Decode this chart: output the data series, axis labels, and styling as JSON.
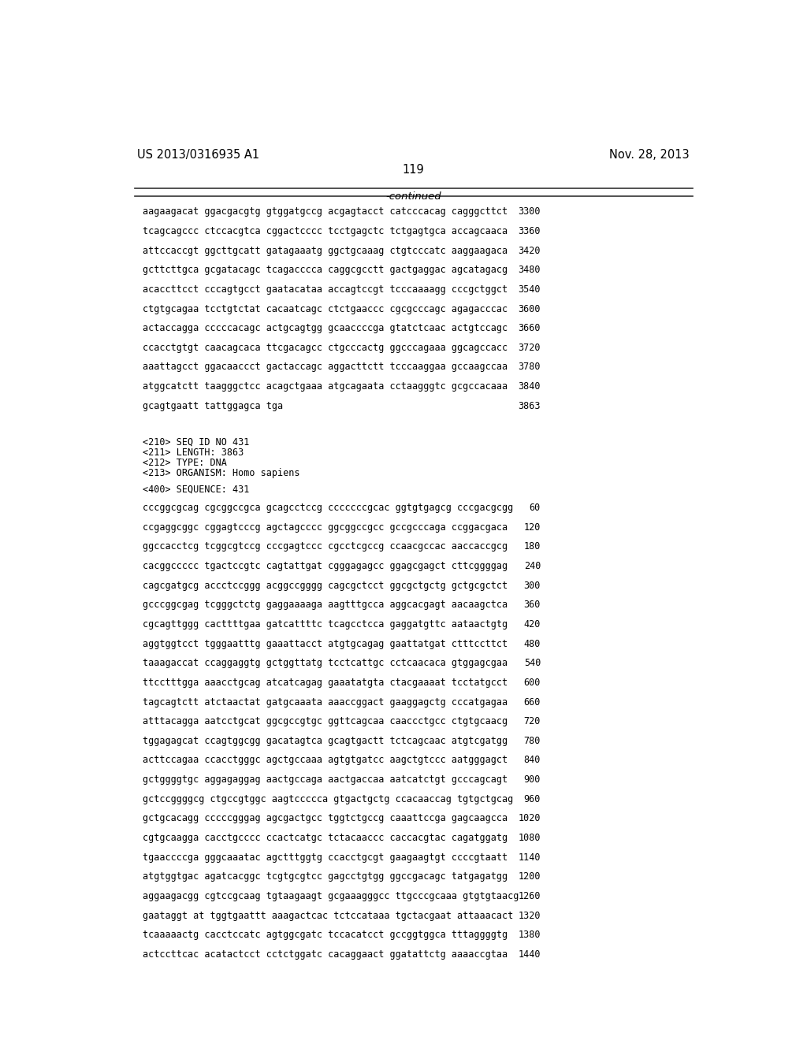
{
  "header_left": "US 2013/0316935 A1",
  "header_right": "Nov. 28, 2013",
  "page_number": "119",
  "continued_label": "-continued",
  "background_color": "#ffffff",
  "text_color": "#000000",
  "font_family": "monospace",
  "top_section_lines": [
    [
      "aagaagacat ggacgacgtg gtggatgccg acgagtacct catcccacag cagggcttct",
      "3300"
    ],
    [
      "tcagcagccc ctccacgtca cggactcccc tcctgagctc tctgagtgca accagcaaca",
      "3360"
    ],
    [
      "attccaccgt ggcttgcatt gatagaaatg ggctgcaaag ctgtcccatc aaggaagaca",
      "3420"
    ],
    [
      "gcttcttgca gcgatacagc tcagacccca caggcgcctt gactgaggac agcatagacg",
      "3480"
    ],
    [
      "acaccttcct cccagtgcct gaatacataa accagtccgt tcccaaaagg cccgctggct",
      "3540"
    ],
    [
      "ctgtgcagaa tcctgtctat cacaatcagc ctctgaaccc cgcgcccagc agagacccac",
      "3600"
    ],
    [
      "actaccagga cccccacagc actgcagtgg gcaaccccga gtatctcaac actgtccagc",
      "3660"
    ],
    [
      "ccacctgtgt caacagcaca ttcgacagcc ctgcccactg ggcccagaaa ggcagccacc",
      "3720"
    ],
    [
      "aaattagcct ggacaaccct gactaccagc aggacttctt tcccaaggaa gccaagccaa",
      "3780"
    ],
    [
      "atggcatctt taagggctcc acagctgaaa atgcagaata cctaagggtc gcgccacaaa",
      "3840"
    ],
    [
      "gcagtgaatt tattggagca tga",
      "3863"
    ]
  ],
  "metadata_lines": [
    "<210> SEQ ID NO 431",
    "<211> LENGTH: 3863",
    "<212> TYPE: DNA",
    "<213> ORGANISM: Homo sapiens"
  ],
  "sequence_label": "<400> SEQUENCE: 431",
  "bottom_section_lines": [
    [
      "cccggcgcag cgcggccgca gcagcctccg cccccccgcac ggtgtgagcg cccgacgcgg",
      "60"
    ],
    [
      "ccgaggcggc cggagtcccg agctagcccc ggcggccgcc gccgcccaga ccggacgaca",
      "120"
    ],
    [
      "ggccacctcg tcggcgtccg cccgagtccc cgcctcgccg ccaacgccac aaccaccgcg",
      "180"
    ],
    [
      "cacggccccc tgactccgtc cagtattgat cgggagagcc ggagcgagct cttcggggag",
      "240"
    ],
    [
      "cagcgatgcg accctccggg acggccgggg cagcgctcct ggcgctgctg gctgcgctct",
      "300"
    ],
    [
      "gcccggcgag tcgggctctg gaggaaaaga aagtttgcca aggcacgagt aacaagctca",
      "360"
    ],
    [
      "cgcagttggg cacttttgaa gatcattttc tcagcctcca gaggatgttc aataactgtg",
      "420"
    ],
    [
      "aggtggtcct tgggaatttg gaaattacct atgtgcagag gaattatgat ctttccttct",
      "480"
    ],
    [
      "taaagaccat ccaggaggtg gctggttatg tcctcattgc cctcaacaca gtggagcgaa",
      "540"
    ],
    [
      "ttcctttgga aaacctgcag atcatcagag gaaatatgta ctacgaaaat tcctatgcct",
      "600"
    ],
    [
      "tagcagtctt atctaactat gatgcaaata aaaccggact gaaggagctg cccatgagaa",
      "660"
    ],
    [
      "atttacagga aatcctgcat ggcgccgtgc ggttcagcaa caaccctgcc ctgtgcaacg",
      "720"
    ],
    [
      "tggagagcat ccagtggcgg gacatagtca gcagtgactt tctcagcaac atgtcgatgg",
      "780"
    ],
    [
      "acttccagaa ccacctgggc agctgccaaa agtgtgatcc aagctgtccc aatgggagct",
      "840"
    ],
    [
      "gctggggtgc aggagaggag aactgccaga aactgaccaa aatcatctgt gcccagcagt",
      "900"
    ],
    [
      "gctccggggcg ctgccgtggc aagtccccca gtgactgctg ccacaaccag tgtgctgcag",
      "960"
    ],
    [
      "gctgcacagg cccccgggag agcgactgcc tggtctgccg caaattccga gagcaagcca",
      "1020"
    ],
    [
      "cgtgcaagga cacctgcccc ccactcatgc tctacaaccc caccacgtac cagatggatg",
      "1080"
    ],
    [
      "tgaaccccga gggcaaatac agctttggtg ccacctgcgt gaagaagtgt ccccgtaatt",
      "1140"
    ],
    [
      "atgtggtgac agatcacggc tcgtgcgtcc gagcctgtgg ggccgacagc tatgagatgg",
      "1200"
    ],
    [
      "aggaagacgg cgtccgcaag tgtaagaagt gcgaaagggcc ttgcccgcaaa gtgtgtaacg",
      "1260"
    ],
    [
      "gaataggt at tggtgaattt aaagactcac tctccataaa tgctacgaat attaaacact",
      "1320"
    ],
    [
      "tcaaaaactg cacctccatc agtggcgatc tccacatcct gccggtggca tttaggggtg",
      "1380"
    ],
    [
      "actccttcac acatactcct cctctggatc cacaggaact ggatattctg aaaaccgtaa",
      "1440"
    ]
  ]
}
